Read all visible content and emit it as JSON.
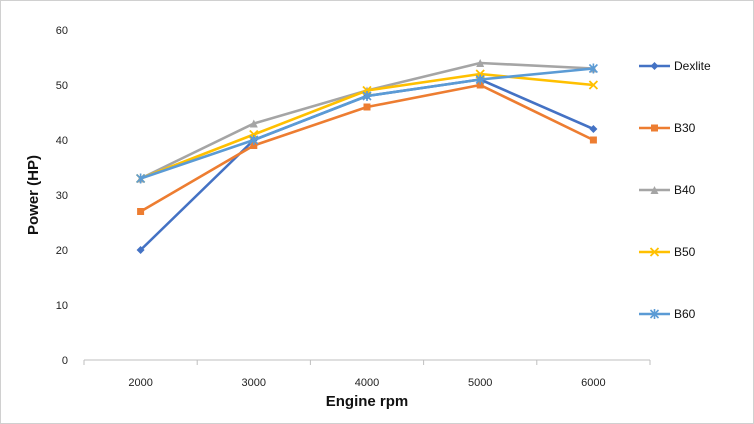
{
  "chart_data": {
    "type": "line",
    "xlabel": "Engine rpm",
    "ylabel": "Power (HP)",
    "categories": [
      "2000",
      "3000",
      "4000",
      "5000",
      "6000"
    ],
    "ylim": [
      0,
      60
    ],
    "yticks": [
      "0",
      "10",
      "20",
      "30",
      "40",
      "50",
      "60"
    ],
    "grid": false,
    "legend": "right",
    "series": [
      {
        "name": "Dexlite",
        "color": "#4472C4",
        "marker": "diamond",
        "values": [
          20,
          40,
          48,
          51,
          42
        ]
      },
      {
        "name": "B30",
        "color": "#ED7D31",
        "marker": "square",
        "values": [
          27,
          39,
          46,
          50,
          40
        ]
      },
      {
        "name": "B40",
        "color": "#A5A5A5",
        "marker": "triangle",
        "values": [
          33,
          43,
          49,
          54,
          53
        ]
      },
      {
        "name": "B50",
        "color": "#FFC000",
        "marker": "x",
        "values": [
          33,
          41,
          49,
          52,
          50
        ]
      },
      {
        "name": "B60",
        "color": "#5B9BD5",
        "marker": "star",
        "values": [
          33,
          40,
          48,
          51,
          53
        ]
      }
    ]
  }
}
